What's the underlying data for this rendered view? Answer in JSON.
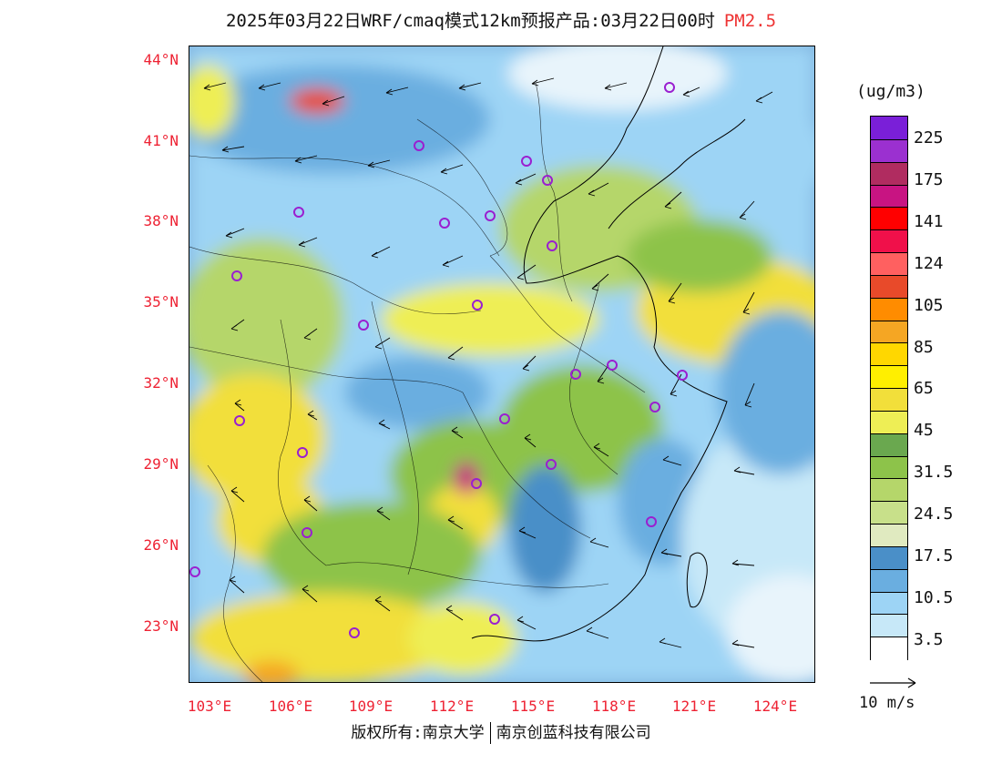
{
  "title": {
    "main": "2025年03月22日WRF/cmaq模式12km预报产品:03月22日00时",
    "variable": "PM2.5"
  },
  "map": {
    "lat_labels": [
      "44°N",
      "41°N",
      "38°N",
      "35°N",
      "32°N",
      "29°N",
      "26°N",
      "23°N"
    ],
    "lon_labels": [
      "103°E",
      "106°E",
      "109°E",
      "112°E",
      "115°E",
      "118°E",
      "121°E",
      "124°E"
    ]
  },
  "legend": {
    "unit": "(ug/m3)",
    "labels": [
      "225",
      "175",
      "141",
      "124",
      "105",
      "85",
      "65",
      "45",
      "31.5",
      "24.5",
      "17.5",
      "10.5",
      "3.5"
    ],
    "colors": [
      "#7a1fd8",
      "#9b30d0",
      "#b02c60",
      "#c81482",
      "#ff0000",
      "#f0104a",
      "#ff6060",
      "#e84a2a",
      "#ff8c00",
      "#f5a623",
      "#ffd700",
      "#ffef00",
      "#f2df3a",
      "#eeee55",
      "#6aa84f",
      "#8dc34a",
      "#b5d66a",
      "#c8e08a",
      "#e0eac0",
      "#4a8fc8",
      "#6aaee0",
      "#9dd4f5",
      "#c7e8f8",
      "#ffffff"
    ]
  },
  "vector_reference": {
    "label": "10 m/s"
  },
  "copyright": {
    "left": "版权所有:南京大学",
    "right": "南京创蓝科技有限公司"
  }
}
